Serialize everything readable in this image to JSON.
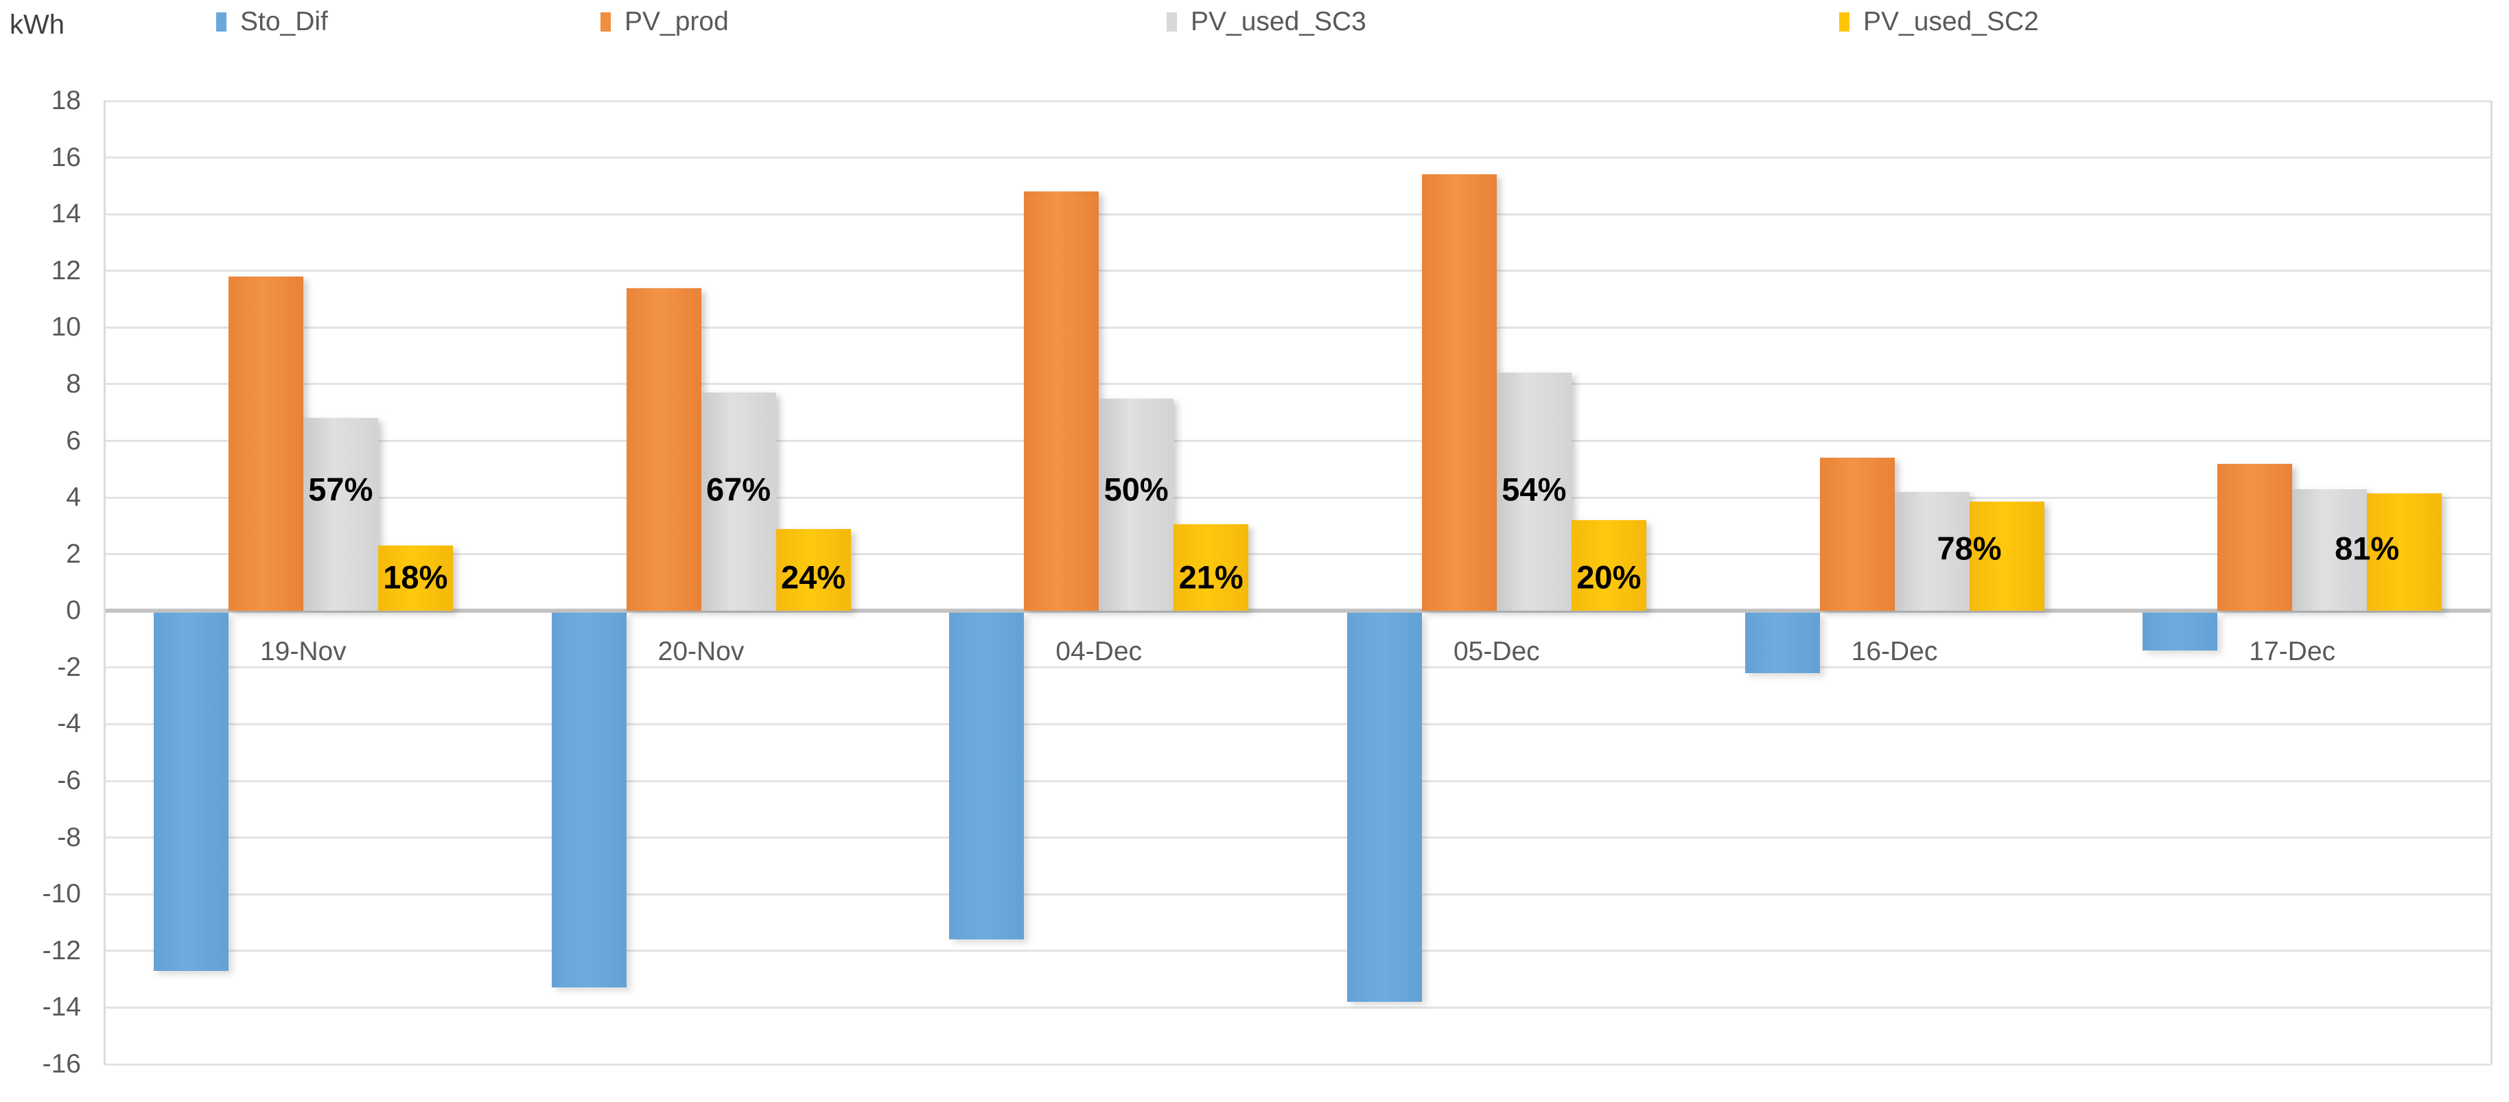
{
  "unit_label": "kWh",
  "legend": [
    {
      "label": "Sto_Dif",
      "color": "#6AA7DC"
    },
    {
      "label": "PV_prod",
      "color": "#EF8E3F"
    },
    {
      "label": "PV_used_SC3",
      "color": "#D8D8D8"
    },
    {
      "label": "PV_used_SC2",
      "color": "#FFC408"
    }
  ],
  "chart_data": {
    "type": "bar",
    "title": "",
    "unit": "kWh",
    "xlabel": "",
    "ylabel": "kWh",
    "categories": [
      "19-Nov",
      "20-Nov",
      "04-Dec",
      "05-Dec",
      "16-Dec",
      "17-Dec"
    ],
    "series": [
      {
        "name": "Sto_Dif",
        "color": "#6AA7DC",
        "values": [
          -12.7,
          -13.3,
          -11.6,
          -13.8,
          -2.2,
          -1.4
        ]
      },
      {
        "name": "PV_prod",
        "color": "#EF8E3F",
        "values": [
          11.8,
          11.4,
          14.8,
          15.4,
          5.4,
          5.2
        ]
      },
      {
        "name": "PV_used_SC3",
        "color": "#D8D8D8",
        "values": [
          6.8,
          7.7,
          7.5,
          8.4,
          4.2,
          4.3
        ]
      },
      {
        "name": "PV_used_SC2",
        "color": "#FFC408",
        "values": [
          2.3,
          2.9,
          3.05,
          3.2,
          3.85,
          4.15
        ]
      }
    ],
    "data_labels": {
      "PV_used_SC3": [
        "57%",
        "67%",
        "50%",
        "54%",
        "78%",
        "81%"
      ],
      "PV_used_SC2": [
        "18%",
        "24%",
        "21%",
        "20%",
        "",
        ""
      ]
    },
    "ylim": [
      -16,
      18
    ],
    "ytick_step": 2,
    "yticks": [
      18,
      16,
      14,
      12,
      10,
      8,
      6,
      4,
      2,
      0,
      -2,
      -4,
      -6,
      -8,
      -10,
      -12,
      -14,
      -16
    ],
    "grid": true,
    "legend_position": "top"
  }
}
